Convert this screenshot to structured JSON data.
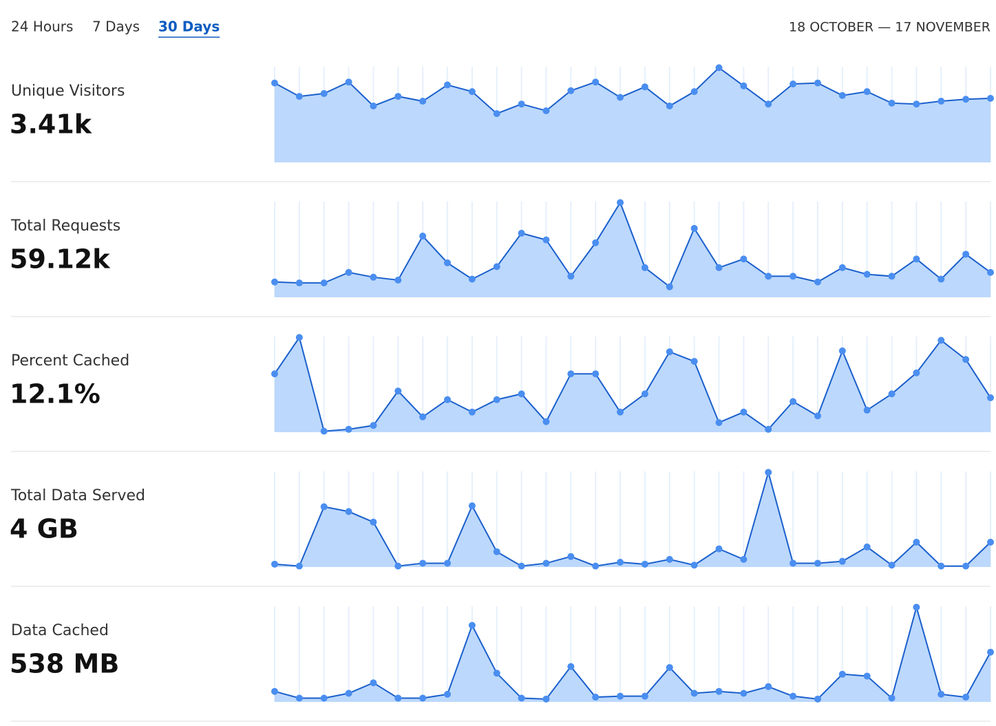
{
  "tabs": [
    "24 Hours",
    "7 Days",
    "30 Days"
  ],
  "active_tab": 2,
  "date_range": "18 OCTOBER — 17 NOVEMBER",
  "metrics": [
    {
      "label": "Unique Visitors",
      "value": "3.41k",
      "chart": {
        "type": "area",
        "color": "#1a5fcc",
        "ylim": [
          0,
          100
        ],
        "values": [
          83,
          69,
          72,
          84,
          59,
          69,
          64,
          81,
          74,
          51,
          61,
          54,
          75,
          84,
          68,
          79,
          59,
          74,
          99,
          80,
          61,
          82,
          83,
          70,
          74,
          62,
          61,
          64,
          66,
          67
        ]
      }
    },
    {
      "label": "Total Requests",
      "value": "59.12k",
      "chart": {
        "type": "area",
        "color": "#1a5fcc",
        "ylim": [
          0,
          100
        ],
        "values": [
          16,
          15,
          15,
          26,
          21,
          18,
          64,
          36,
          19,
          32,
          67,
          60,
          22,
          57,
          99,
          31,
          11,
          72,
          31,
          40,
          22,
          22,
          16,
          31,
          24,
          22,
          40,
          19,
          45,
          26
        ]
      }
    },
    {
      "label": "Percent Cached",
      "value": "12.1%",
      "chart": {
        "type": "area",
        "color": "#1a5fcc",
        "ylim": [
          0,
          100
        ],
        "values": [
          61,
          99,
          1,
          3,
          7,
          43,
          16,
          34,
          21,
          34,
          40,
          11,
          61,
          61,
          21,
          40,
          84,
          74,
          10,
          21,
          3,
          32,
          17,
          85,
          23,
          40,
          62,
          96,
          76,
          36
        ]
      }
    },
    {
      "label": "Total Data Served",
      "value": "4 GB",
      "chart": {
        "type": "area",
        "color": "#1a5fcc",
        "ylim": [
          0,
          100
        ],
        "values": [
          3,
          1,
          63,
          58,
          47,
          1,
          4,
          4,
          64,
          16,
          1,
          4,
          11,
          1,
          5,
          3,
          8,
          2,
          19,
          8,
          99,
          4,
          4,
          6,
          21,
          2,
          26,
          1,
          1,
          26
        ]
      }
    },
    {
      "label": "Data Cached",
      "value": "538 MB",
      "chart": {
        "type": "area",
        "color": "#1a5fcc",
        "ylim": [
          0,
          100
        ],
        "values": [
          11,
          4,
          4,
          9,
          20,
          4,
          4,
          8,
          80,
          30,
          4,
          3,
          37,
          5,
          6,
          6,
          36,
          9,
          11,
          9,
          16,
          6,
          3,
          29,
          27,
          4,
          99,
          8,
          5,
          52
        ]
      }
    }
  ]
}
